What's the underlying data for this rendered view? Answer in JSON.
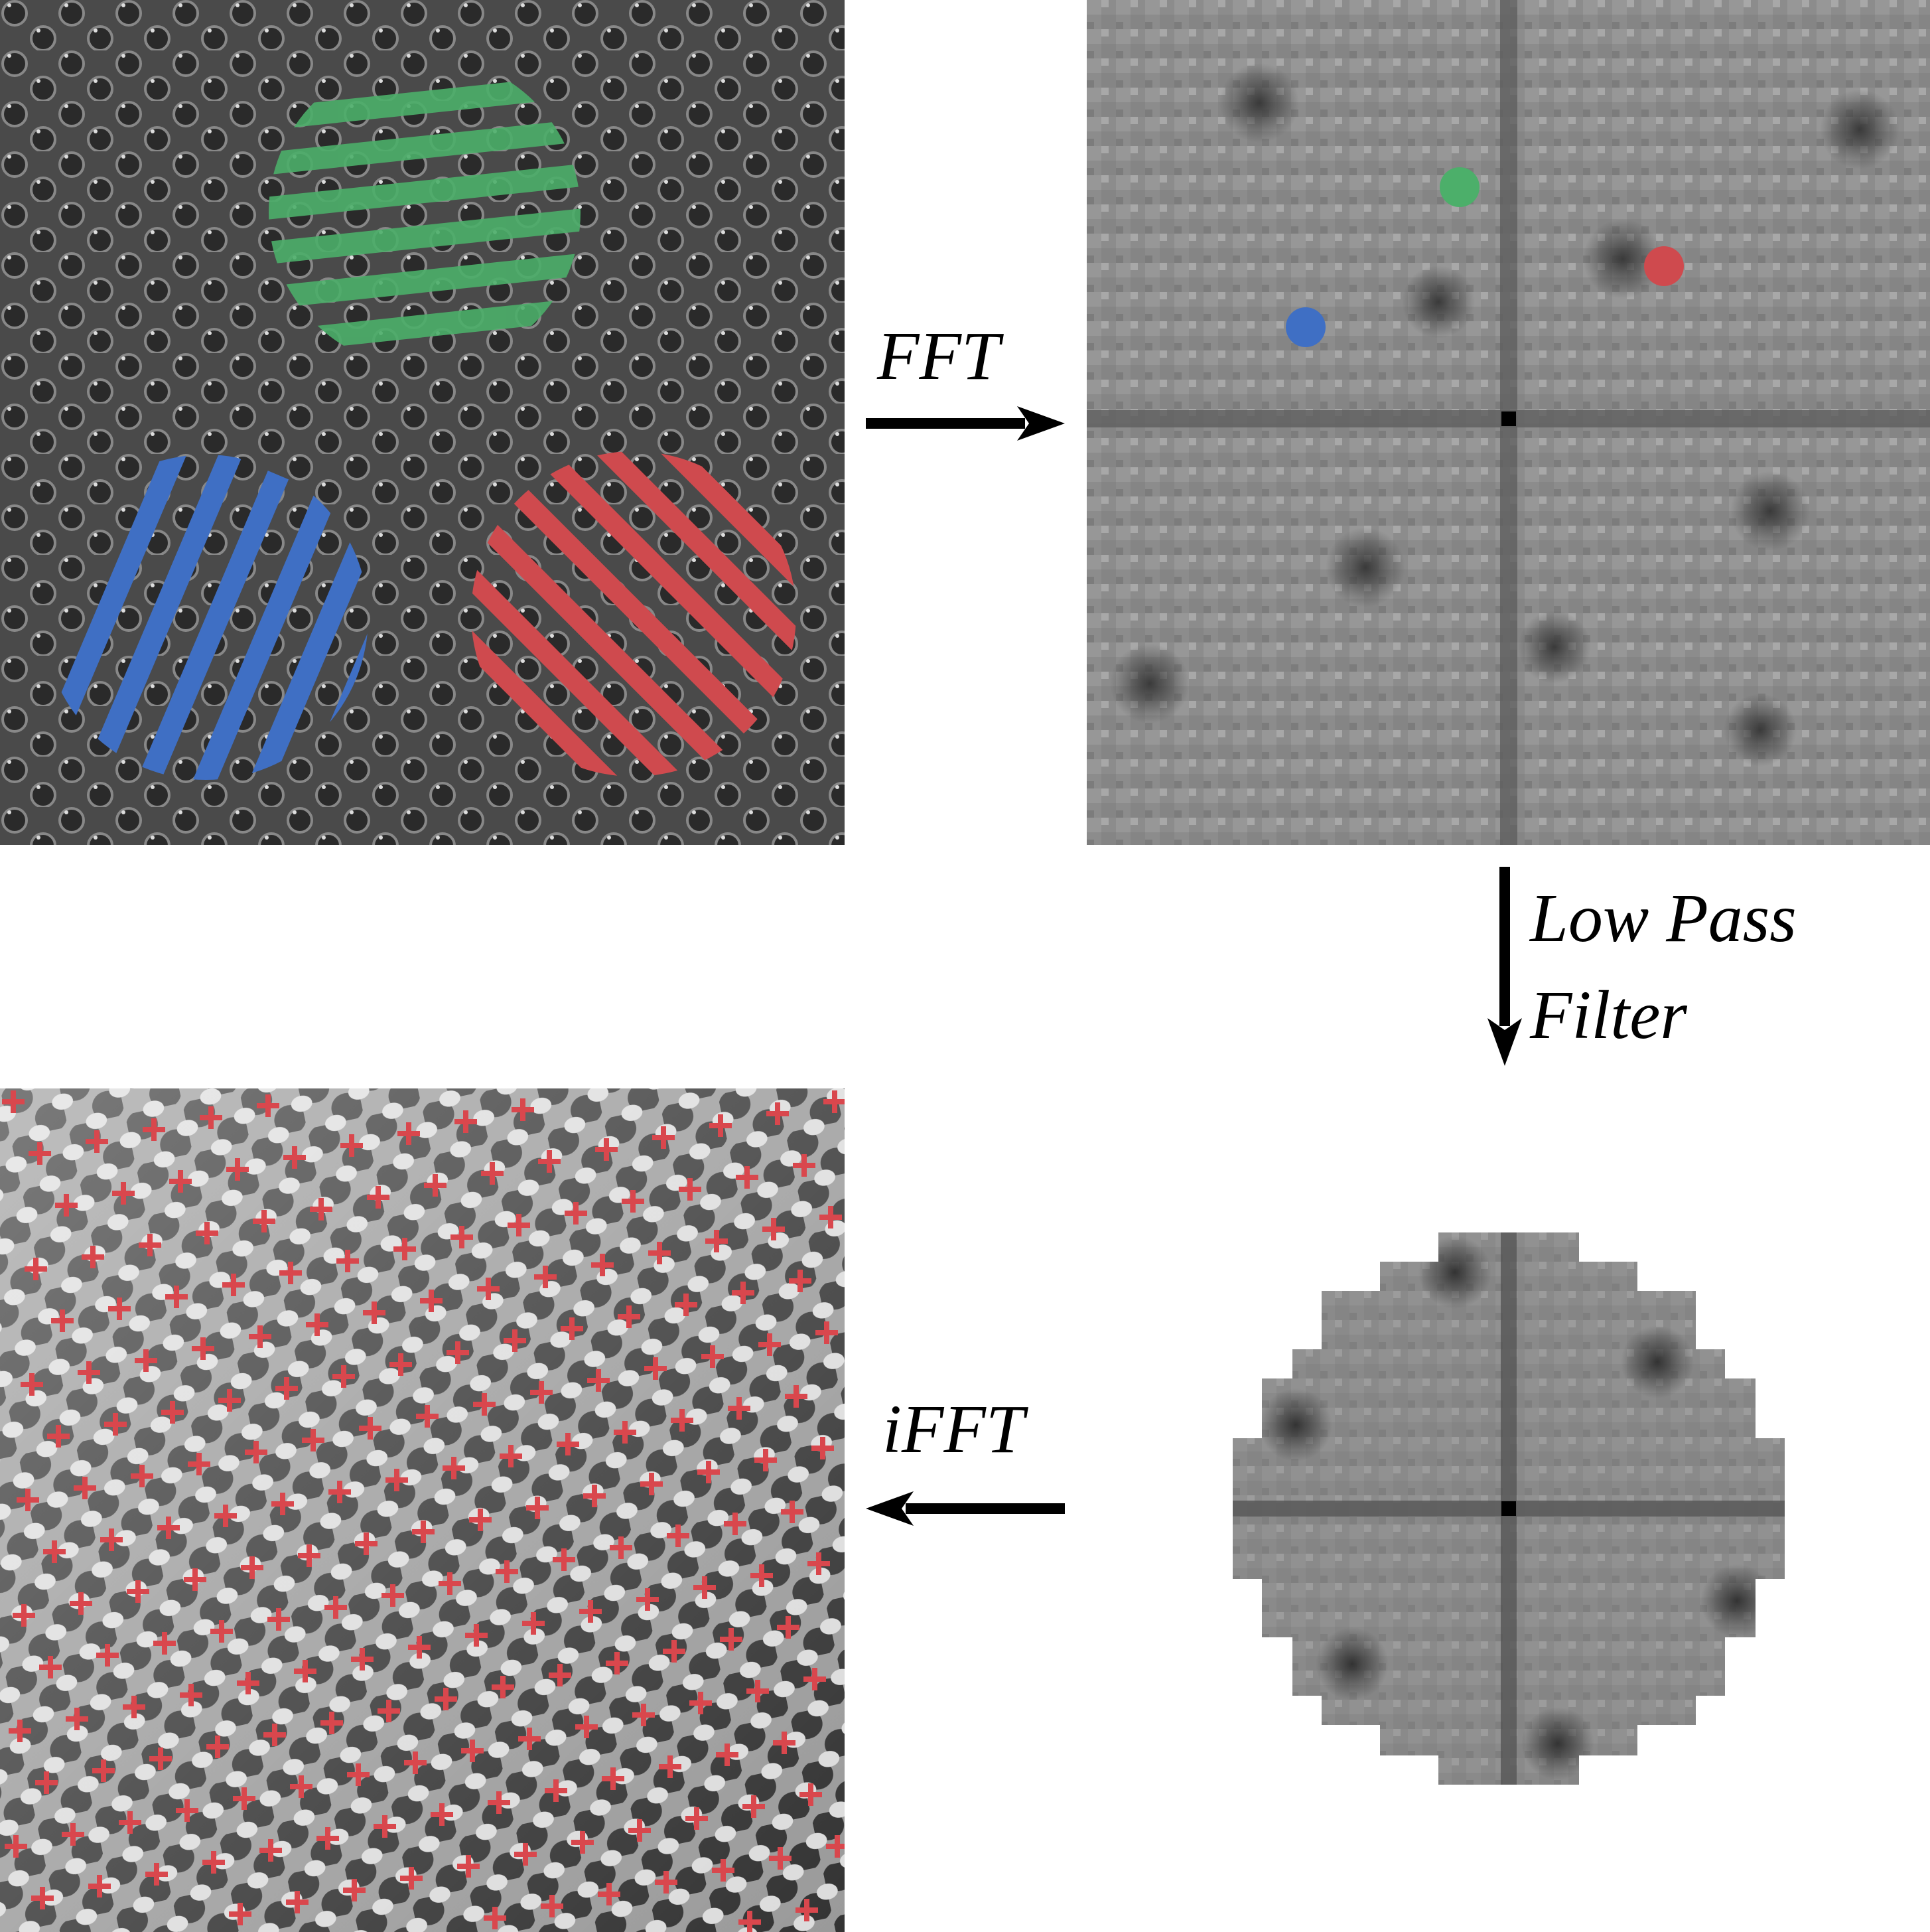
{
  "labels": {
    "fft": "FFT",
    "low_pass_line1": "Low Pass",
    "low_pass_line2": "Filter",
    "ifft": "iFFT"
  },
  "colors": {
    "green": "#4caf6a",
    "blue": "#3f6fc4",
    "red": "#cf4a4e",
    "marker": "#d9474d",
    "arrow": "#000000"
  }
}
